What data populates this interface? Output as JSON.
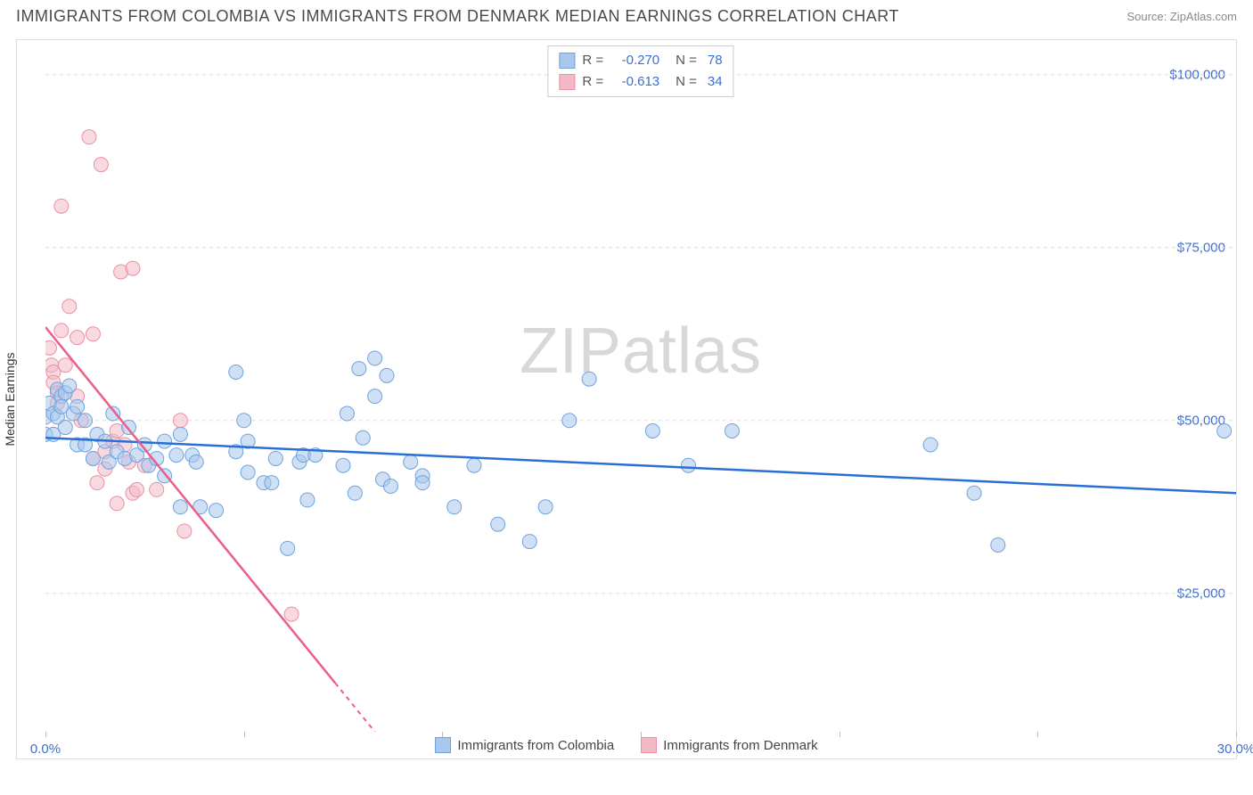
{
  "header": {
    "title": "IMMIGRANTS FROM COLOMBIA VS IMMIGRANTS FROM DENMARK MEDIAN EARNINGS CORRELATION CHART",
    "source": "Source: ZipAtlas.com"
  },
  "watermark": "ZIPatlas",
  "chart": {
    "type": "scatter",
    "ylabel": "Median Earnings",
    "xlim": [
      0,
      30
    ],
    "ylim": [
      5000,
      105000
    ],
    "x_ticks": [
      0,
      5,
      10,
      15,
      20,
      25,
      30
    ],
    "x_tick_labels": {
      "0": "0.0%",
      "30": "30.0%"
    },
    "y_gridlines": [
      25000,
      50000,
      75000,
      100000
    ],
    "y_tick_labels": {
      "25000": "$25,000",
      "50000": "$50,000",
      "75000": "$75,000",
      "100000": "$100,000"
    },
    "background_color": "#ffffff",
    "grid_color": "#dddddd",
    "axis_color": "#bbbbbb",
    "tick_label_color": "#3b6fd4",
    "series": [
      {
        "name": "Immigrants from Colombia",
        "color_fill": "#a7c7ec",
        "color_stroke": "#6fa3dd",
        "line_color": "#2a6fd6",
        "marker_radius": 8,
        "fill_opacity": 0.55,
        "R": "-0.270",
        "N": "78",
        "trend": {
          "x1": 0,
          "y1": 47500,
          "x2": 30,
          "y2": 39500
        },
        "points": [
          [
            0.0,
            48000
          ],
          [
            0.0,
            50500
          ],
          [
            0.1,
            52500
          ],
          [
            0.2,
            51000
          ],
          [
            0.2,
            48000
          ],
          [
            0.3,
            54500
          ],
          [
            0.3,
            50500
          ],
          [
            0.4,
            53500
          ],
          [
            0.4,
            52000
          ],
          [
            0.5,
            49000
          ],
          [
            0.5,
            54000
          ],
          [
            0.6,
            55000
          ],
          [
            0.7,
            51000
          ],
          [
            0.8,
            46500
          ],
          [
            0.8,
            52000
          ],
          [
            1.0,
            46500
          ],
          [
            1.0,
            50000
          ],
          [
            1.2,
            44500
          ],
          [
            1.3,
            48000
          ],
          [
            1.5,
            47000
          ],
          [
            1.6,
            44000
          ],
          [
            1.7,
            51000
          ],
          [
            1.8,
            45500
          ],
          [
            2.0,
            44500
          ],
          [
            2.1,
            49000
          ],
          [
            2.3,
            45000
          ],
          [
            2.5,
            46500
          ],
          [
            2.6,
            43500
          ],
          [
            2.8,
            44500
          ],
          [
            3.0,
            47000
          ],
          [
            3.0,
            42000
          ],
          [
            3.3,
            45000
          ],
          [
            3.4,
            37500
          ],
          [
            3.4,
            48000
          ],
          [
            3.7,
            45000
          ],
          [
            3.8,
            44000
          ],
          [
            3.9,
            37500
          ],
          [
            4.3,
            37000
          ],
          [
            4.8,
            45500
          ],
          [
            4.8,
            57000
          ],
          [
            5.1,
            42500
          ],
          [
            5.0,
            50000
          ],
          [
            5.1,
            47000
          ],
          [
            5.5,
            41000
          ],
          [
            5.7,
            41000
          ],
          [
            5.8,
            44500
          ],
          [
            6.1,
            31500
          ],
          [
            6.4,
            44000
          ],
          [
            6.5,
            45000
          ],
          [
            6.6,
            38500
          ],
          [
            6.8,
            45000
          ],
          [
            7.5,
            43500
          ],
          [
            7.6,
            51000
          ],
          [
            7.8,
            39500
          ],
          [
            7.9,
            57500
          ],
          [
            8.0,
            47500
          ],
          [
            8.3,
            59000
          ],
          [
            8.3,
            53500
          ],
          [
            8.5,
            41500
          ],
          [
            8.6,
            56500
          ],
          [
            8.7,
            40500
          ],
          [
            9.2,
            44000
          ],
          [
            9.5,
            42000
          ],
          [
            9.5,
            41000
          ],
          [
            10.3,
            37500
          ],
          [
            10.8,
            43500
          ],
          [
            11.4,
            35000
          ],
          [
            12.2,
            32500
          ],
          [
            12.6,
            37500
          ],
          [
            13.2,
            50000
          ],
          [
            13.7,
            56000
          ],
          [
            15.3,
            48500
          ],
          [
            16.2,
            43500
          ],
          [
            17.3,
            48500
          ],
          [
            22.3,
            46500
          ],
          [
            23.4,
            39500
          ],
          [
            24.0,
            32000
          ],
          [
            29.7,
            48500
          ]
        ]
      },
      {
        "name": "Immigrants from Denmark",
        "color_fill": "#f4b9c6",
        "color_stroke": "#eb8fa4",
        "line_color": "#e95f8a",
        "marker_radius": 8,
        "fill_opacity": 0.55,
        "R": "-0.613",
        "N": "34",
        "trend": {
          "x1": 0,
          "y1": 63500,
          "x2": 8.3,
          "y2": 5000
        },
        "trend_dash_after_x": 7.3,
        "points": [
          [
            0.1,
            60500
          ],
          [
            0.15,
            58000
          ],
          [
            0.2,
            57000
          ],
          [
            0.2,
            55500
          ],
          [
            0.3,
            54000
          ],
          [
            0.3,
            52500
          ],
          [
            0.4,
            63000
          ],
          [
            0.4,
            81000
          ],
          [
            0.5,
            58000
          ],
          [
            0.6,
            66500
          ],
          [
            0.8,
            62000
          ],
          [
            0.8,
            53500
          ],
          [
            0.9,
            50000
          ],
          [
            1.1,
            91000
          ],
          [
            1.2,
            44500
          ],
          [
            1.2,
            62500
          ],
          [
            1.3,
            41000
          ],
          [
            1.4,
            87000
          ],
          [
            1.5,
            45500
          ],
          [
            1.5,
            43000
          ],
          [
            1.7,
            47000
          ],
          [
            1.8,
            48500
          ],
          [
            1.8,
            38000
          ],
          [
            1.9,
            71500
          ],
          [
            2.0,
            46500
          ],
          [
            2.1,
            44000
          ],
          [
            2.2,
            39500
          ],
          [
            2.2,
            72000
          ],
          [
            2.3,
            40000
          ],
          [
            2.5,
            43500
          ],
          [
            2.8,
            40000
          ],
          [
            3.4,
            50000
          ],
          [
            3.5,
            34000
          ],
          [
            6.2,
            22000
          ]
        ]
      }
    ]
  },
  "legend_bottom": [
    {
      "swatch_fill": "#a7c7ec",
      "swatch_stroke": "#6fa3dd",
      "label": "Immigrants from Colombia"
    },
    {
      "swatch_fill": "#f4b9c6",
      "swatch_stroke": "#eb8fa4",
      "label": "Immigrants from Denmark"
    }
  ]
}
